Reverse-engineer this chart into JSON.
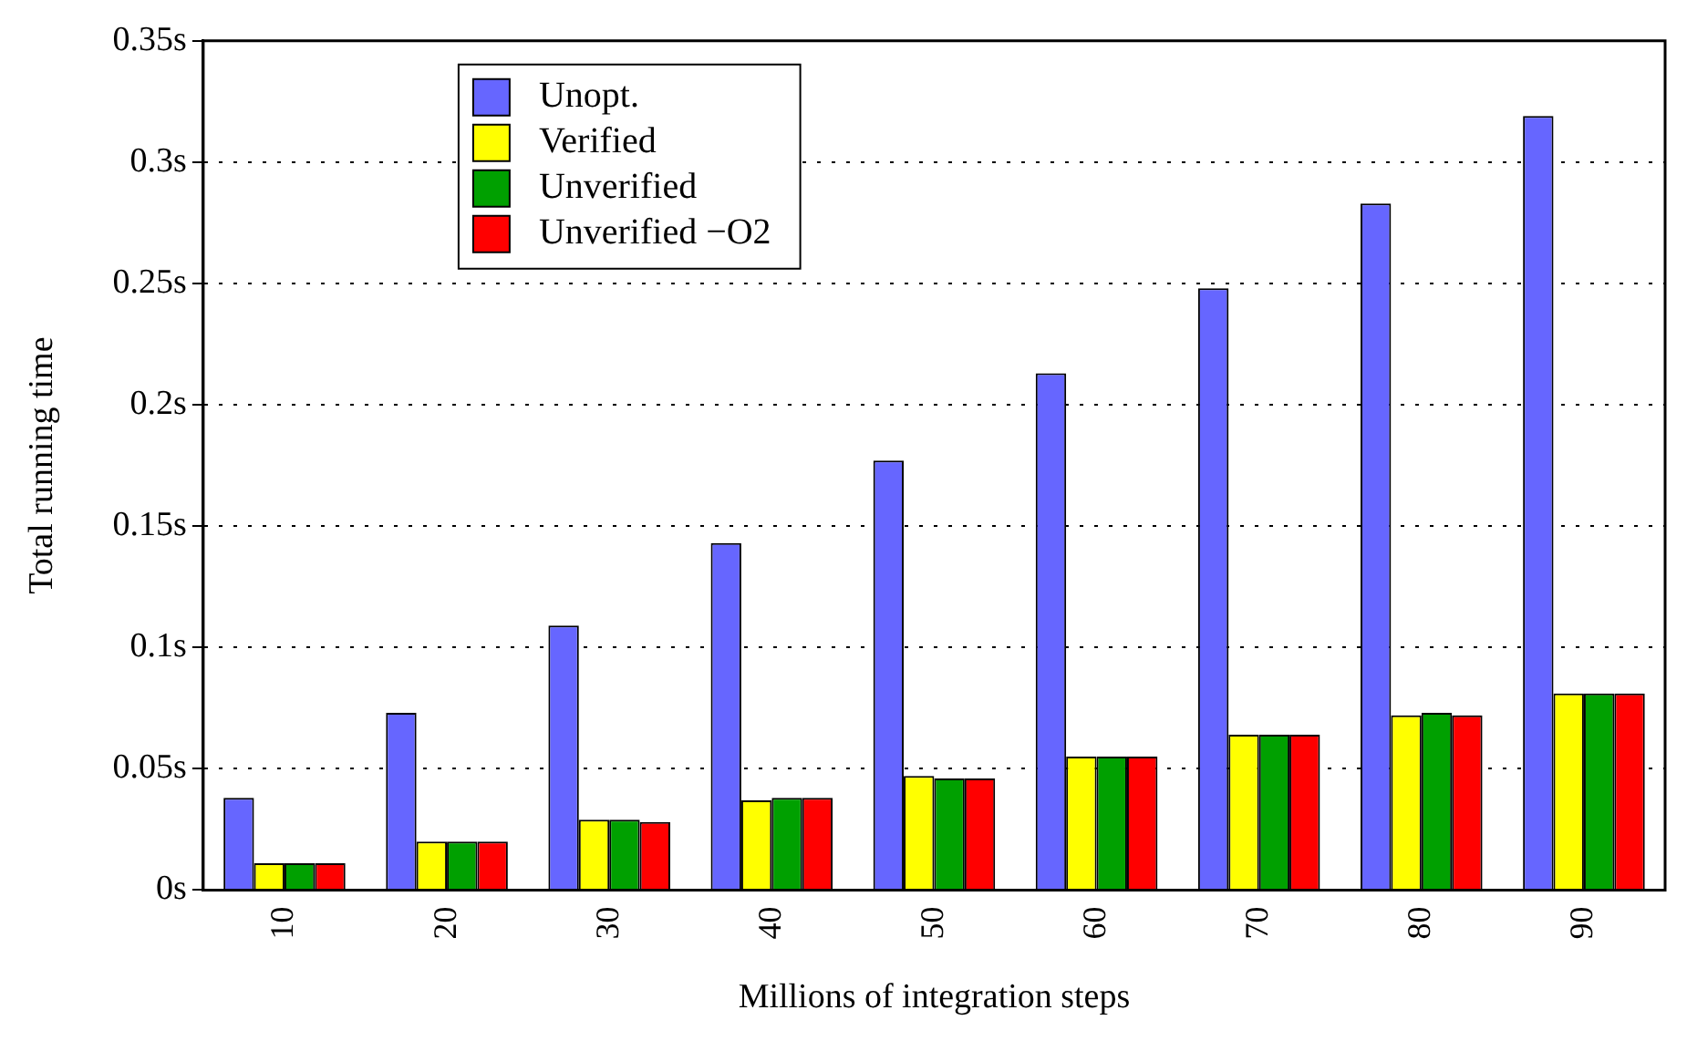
{
  "chart_data": {
    "type": "bar",
    "xlabel": "Millions of integration steps",
    "ylabel": "Total running time",
    "categories": [
      "10",
      "20",
      "30",
      "40",
      "50",
      "60",
      "70",
      "80",
      "90"
    ],
    "series": [
      {
        "name": "Unopt.",
        "color": "#6666ff",
        "values": [
          0.038,
          0.073,
          0.109,
          0.143,
          0.177,
          0.213,
          0.248,
          0.283,
          0.319
        ]
      },
      {
        "name": "Verified",
        "color": "#ffff00",
        "values": [
          0.011,
          0.02,
          0.029,
          0.037,
          0.047,
          0.055,
          0.064,
          0.072,
          0.081
        ]
      },
      {
        "name": "Unverified",
        "color": "#00a000",
        "values": [
          0.011,
          0.02,
          0.029,
          0.038,
          0.046,
          0.055,
          0.064,
          0.073,
          0.081
        ]
      },
      {
        "name": "Unverified −O2",
        "color": "#ff0000",
        "values": [
          0.011,
          0.02,
          0.028,
          0.038,
          0.046,
          0.055,
          0.064,
          0.072,
          0.081
        ]
      }
    ],
    "ylim": [
      0,
      0.35
    ],
    "yticks": [
      {
        "value": 0,
        "label": "0s"
      },
      {
        "value": 0.05,
        "label": "0.05s"
      },
      {
        "value": 0.1,
        "label": "0.1s"
      },
      {
        "value": 0.15,
        "label": "0.15s"
      },
      {
        "value": 0.2,
        "label": "0.2s"
      },
      {
        "value": 0.25,
        "label": "0.25s"
      },
      {
        "value": 0.3,
        "label": "0.3s"
      },
      {
        "value": 0.35,
        "label": "0.35s"
      }
    ],
    "grid": "y",
    "legend": "top left"
  }
}
